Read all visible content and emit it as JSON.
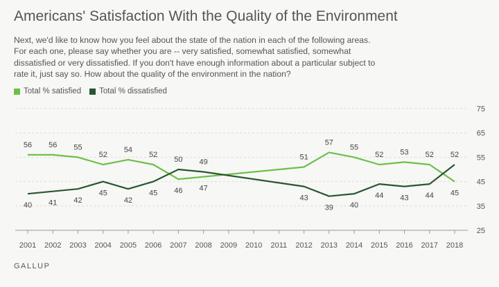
{
  "header": {
    "title": "Americans' Satisfaction With the Quality of the Environment",
    "question": "Next, we'd like to know how you feel about the state of the nation in each of the following areas. For each one, please say whether you are -- very satisfied, somewhat satisfied, somewhat dissatisfied or very dissatisfied. If you don't have enough information about a particular subject to rate it, just say so. How about the quality of the environment in the nation?"
  },
  "footer": {
    "source": "GALLUP"
  },
  "colors": {
    "satisfied": "#6cc04a",
    "dissatisfied": "#2a5530"
  },
  "chart_data": {
    "type": "line",
    "title": "Americans' Satisfaction With the Quality of the Environment",
    "xlabel": "",
    "ylabel": "",
    "x": [
      2001,
      2002,
      2003,
      2004,
      2005,
      2006,
      2007,
      2008,
      2009,
      2010,
      2011,
      2012,
      2013,
      2014,
      2015,
      2016,
      2017,
      2018
    ],
    "x_tick_labels": [
      "2001",
      "2002",
      "2003",
      "2004",
      "2005",
      "2006",
      "2007",
      "2008",
      "2009",
      "2010",
      "2011",
      "2012",
      "2013",
      "2014",
      "2015",
      "2016",
      "2017",
      "2018"
    ],
    "y_ticks": [
      25,
      35,
      45,
      55,
      65,
      75
    ],
    "y_tick_labels": [
      "25",
      "35",
      "45",
      "55",
      "65",
      "75"
    ],
    "ylim": [
      25,
      75
    ],
    "legend_position": "top-left",
    "series": [
      {
        "name": "Total % satisfied",
        "key": "satisfied",
        "points": [
          [
            2001,
            56
          ],
          [
            2002,
            56
          ],
          [
            2003,
            55
          ],
          [
            2004,
            52
          ],
          [
            2005,
            54
          ],
          [
            2006,
            52
          ],
          [
            2007,
            46
          ],
          [
            2008,
            47
          ],
          [
            2012,
            51
          ],
          [
            2013,
            57
          ],
          [
            2014,
            55
          ],
          [
            2015,
            52
          ],
          [
            2016,
            53
          ],
          [
            2017,
            52
          ],
          [
            2018,
            45
          ]
        ],
        "labels": [
          "56",
          "56",
          "55",
          "52",
          "54",
          "52",
          "46",
          "47",
          "51",
          "57",
          "55",
          "52",
          "53",
          "52",
          "45"
        ]
      },
      {
        "name": "Total % dissatisfied",
        "key": "dissatisfied",
        "points": [
          [
            2001,
            40
          ],
          [
            2002,
            41
          ],
          [
            2003,
            42
          ],
          [
            2004,
            45
          ],
          [
            2005,
            42
          ],
          [
            2006,
            45
          ],
          [
            2007,
            50
          ],
          [
            2008,
            49
          ],
          [
            2012,
            43
          ],
          [
            2013,
            39
          ],
          [
            2014,
            40
          ],
          [
            2015,
            44
          ],
          [
            2016,
            43
          ],
          [
            2017,
            44
          ],
          [
            2018,
            52
          ]
        ],
        "labels": [
          "40",
          "41",
          "42",
          "45",
          "42",
          "45",
          "50",
          "49",
          "43",
          "39",
          "40",
          "44",
          "43",
          "44",
          "52"
        ]
      }
    ]
  }
}
